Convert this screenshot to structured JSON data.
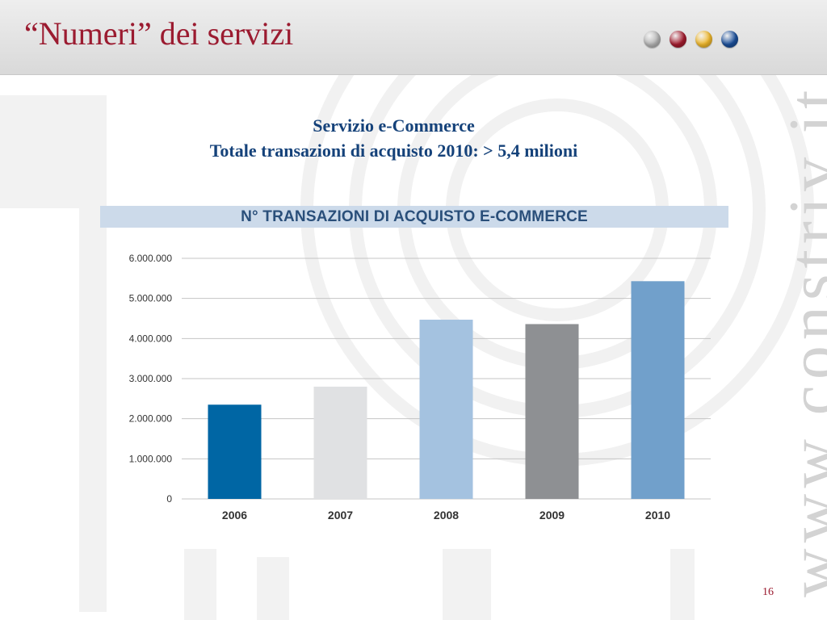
{
  "slide": {
    "title": "“Numeri” dei servizi",
    "page_number": "16",
    "watermark": "www.constriv.it",
    "dots": [
      {
        "name": "gray-dot",
        "color": "#b5b5b5"
      },
      {
        "name": "red-dot",
        "color": "#a31c2e"
      },
      {
        "name": "yellow-dot",
        "color": "#f0b82c"
      },
      {
        "name": "blue-dot",
        "color": "#1b4f9a"
      }
    ]
  },
  "subtitle": {
    "line1": "Servizio e-Commerce",
    "line2": "Totale transazioni di acquisto 2010: > 5,4 milioni"
  },
  "chart_data": {
    "type": "bar",
    "title": "N° TRANSAZIONI DI ACQUISTO E-COMMERCE",
    "categories": [
      "2006",
      "2007",
      "2008",
      "2009",
      "2010"
    ],
    "values": [
      2350000,
      2800000,
      4470000,
      4360000,
      5430000
    ],
    "bar_colors": [
      "#0066a4",
      "#e0e1e3",
      "#a4c2e0",
      "#8e9093",
      "#71a0cb"
    ],
    "ylim": [
      0,
      6000000
    ],
    "yticks": [
      0,
      1000000,
      2000000,
      3000000,
      4000000,
      5000000,
      6000000
    ],
    "ytick_labels": [
      "0",
      "1.000.000",
      "2.000.000",
      "3.000.000",
      "4.000.000",
      "5.000.000",
      "6.000.000"
    ],
    "grid": true,
    "xlabel": "",
    "ylabel": ""
  }
}
